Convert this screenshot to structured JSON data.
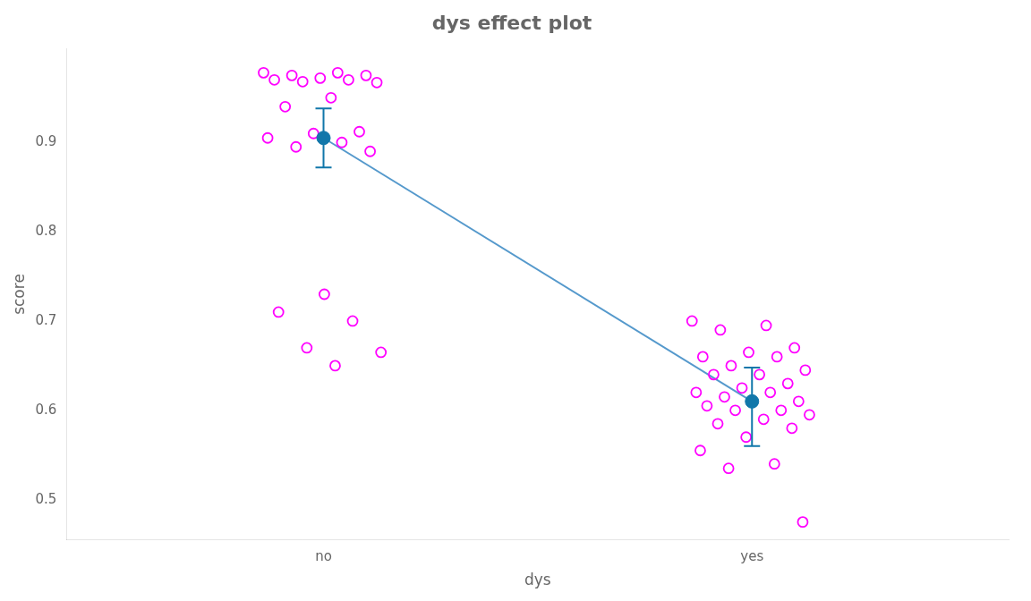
{
  "chart_data": {
    "type": "scatter",
    "title": "dys effect plot",
    "xlabel": "dys",
    "ylabel": "score",
    "categories": [
      "no",
      "yes"
    ],
    "ylim": [
      0.455,
      1.005
    ],
    "yticks": [
      0.5,
      0.6,
      0.7,
      0.8,
      0.9
    ],
    "grid": false,
    "series": [
      {
        "type": "scatter",
        "marker": "open_circle",
        "color": "#FF00FF",
        "values": [
          [
            0.978,
            0.978,
            0.975,
            0.975,
            0.972,
            0.97,
            0.97,
            0.968,
            0.967,
            0.95,
            0.94,
            0.912,
            0.91,
            0.905,
            0.9,
            0.895,
            0.89,
            0.73,
            0.71,
            0.7,
            0.67,
            0.665,
            0.65
          ],
          [
            0.7,
            0.695,
            0.69,
            0.67,
            0.665,
            0.66,
            0.66,
            0.65,
            0.645,
            0.64,
            0.64,
            0.63,
            0.625,
            0.62,
            0.62,
            0.615,
            0.61,
            0.61,
            0.605,
            0.6,
            0.6,
            0.595,
            0.59,
            0.585,
            0.58,
            0.57,
            0.555,
            0.54,
            0.535,
            0.475
          ]
        ]
      },
      {
        "type": "line",
        "marker": "none",
        "color": "#5599CC",
        "values": [
          0.905,
          0.61
        ]
      },
      {
        "type": "scatter",
        "marker": "circle",
        "color": "#1177AA",
        "values": [
          0.905,
          0.61
        ],
        "error_lower": [
          0.872,
          0.56
        ],
        "error_upper": [
          0.938,
          0.648
        ]
      }
    ]
  }
}
